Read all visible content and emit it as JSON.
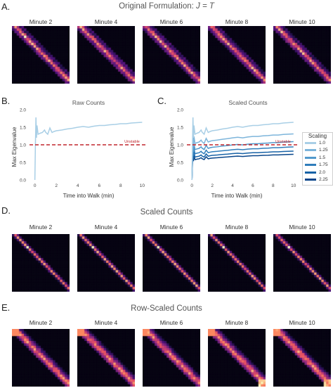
{
  "panels": {
    "a": {
      "letter": "A.",
      "title_prefix": "Original Formulation: ",
      "title_formula": "J = T",
      "minutes": [
        "Minute 2",
        "Minute 4",
        "Minute 6",
        "Minute 8",
        "Minute 10"
      ]
    },
    "b": {
      "letter": "B.",
      "title": "Raw Counts"
    },
    "c": {
      "letter": "C.",
      "title": "Scaled Counts"
    },
    "d": {
      "letter": "D.",
      "title": "Scaled Counts",
      "minutes": [
        "Minute 2",
        "Minute 4",
        "Minute 6",
        "Minute 8",
        "Minute 10"
      ]
    },
    "e": {
      "letter": "E.",
      "title": "Row-Scaled Counts",
      "minutes": [
        "Minute 2",
        "Minute 4",
        "Minute 6",
        "Minute 8",
        "Minute 10"
      ]
    }
  },
  "chart_data": [
    {
      "type": "line",
      "title": "Raw Counts",
      "xlabel": "Time into Walk (min)",
      "ylabel": "Max Eigenvalue",
      "xlim": [
        -0.5,
        10.5
      ],
      "ylim": [
        0.0,
        2.0
      ],
      "xticks": [
        0,
        2,
        4,
        6,
        8,
        10
      ],
      "yticks": [
        "0.0",
        "0.5",
        "1.0",
        "1.5",
        "2.0"
      ],
      "threshold": {
        "y": 1.0,
        "label": "Unstable",
        "color": "#c0272d"
      },
      "series": [
        {
          "color": "#a9cfe6",
          "x": [
            0.0,
            0.05,
            0.1,
            0.15,
            0.2,
            0.3,
            0.5,
            0.7,
            0.9,
            1.0,
            1.2,
            1.4,
            1.6,
            1.8,
            2.0,
            2.5,
            3.0,
            3.5,
            4.0,
            4.5,
            5.0,
            5.5,
            6.0,
            6.5,
            7.0,
            7.5,
            8.0,
            8.5,
            9.0,
            9.5,
            10.0
          ],
          "y": [
            0.0,
            1.0,
            1.78,
            1.2,
            1.55,
            1.3,
            1.33,
            1.35,
            1.42,
            1.36,
            1.3,
            1.48,
            1.35,
            1.38,
            1.4,
            1.42,
            1.45,
            1.47,
            1.5,
            1.52,
            1.5,
            1.53,
            1.55,
            1.55,
            1.57,
            1.58,
            1.6,
            1.6,
            1.62,
            1.63,
            1.64
          ]
        }
      ]
    },
    {
      "type": "line",
      "title": "Scaled Counts",
      "xlabel": "Time into Walk (min)",
      "ylabel": "Max Eigenvalue",
      "xlim": [
        -0.5,
        10.5
      ],
      "ylim": [
        0.0,
        2.0
      ],
      "xticks": [
        0,
        2,
        4,
        6,
        8,
        10
      ],
      "yticks": [
        "0.0",
        "0.5",
        "1.0",
        "1.5",
        "2.0"
      ],
      "threshold": {
        "y": 1.0,
        "label": "Unstable",
        "color": "#c0272d"
      },
      "legend": {
        "title": "Scaling",
        "placement": "right"
      },
      "series": [
        {
          "name": "1.0",
          "color": "#a9cfe6",
          "y_end": 1.64
        },
        {
          "name": "1.25",
          "color": "#7db5db",
          "y_end": 1.31
        },
        {
          "name": "1.5",
          "color": "#5299cc",
          "y_end": 1.09
        },
        {
          "name": "1.75",
          "color": "#2f7dbb",
          "y_end": 0.94
        },
        {
          "name": "2.0",
          "color": "#1762a6",
          "y_end": 0.82
        },
        {
          "name": "2.25",
          "color": "#08458a",
          "y_end": 0.73
        }
      ]
    }
  ]
}
